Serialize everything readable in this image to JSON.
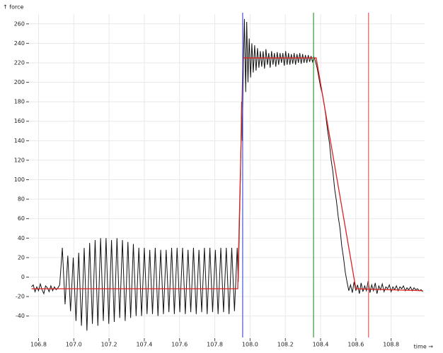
{
  "chart_data": {
    "type": "line",
    "y_label": "↑ force",
    "x_label": "time →",
    "xlim": [
      106.75,
      108.99
    ],
    "ylim": [
      -62,
      270
    ],
    "xticks": [
      106.8,
      {
        "value": 107,
        "label": "107.0"
      },
      107.2,
      107.4,
      107.6,
      107.8,
      {
        "value": 108,
        "label": "108.0"
      },
      108.2,
      108.4,
      108.6,
      108.8
    ],
    "yticks": [
      -40,
      -20,
      0,
      20,
      40,
      60,
      80,
      100,
      120,
      140,
      160,
      180,
      200,
      220,
      240,
      260
    ],
    "grid": true,
    "series": [
      {
        "color": "#111111",
        "x": [
          106.76,
          106.77,
          106.78,
          106.79,
          106.8,
          106.81,
          106.82,
          106.83,
          106.84,
          106.85,
          106.86,
          106.87,
          106.88,
          106.89,
          106.9,
          106.91,
          106.92,
          106.935,
          106.9505,
          106.966,
          106.9815,
          106.997,
          107.0125,
          107.028,
          107.0435,
          107.059,
          107.0745,
          107.09,
          107.1055,
          107.121,
          107.1365,
          107.152,
          107.1675,
          107.183,
          107.1985,
          107.214,
          107.2295,
          107.245,
          107.2605,
          107.276,
          107.2915,
          107.307,
          107.3225,
          107.338,
          107.3535,
          107.369,
          107.3845,
          107.4,
          107.4155,
          107.431,
          107.4465,
          107.462,
          107.4775,
          107.493,
          107.5085,
          107.524,
          107.5395,
          107.555,
          107.5705,
          107.586,
          107.6015,
          107.617,
          107.6325,
          107.648,
          107.6635,
          107.679,
          107.6945,
          107.71,
          107.7255,
          107.741,
          107.7565,
          107.772,
          107.7875,
          107.803,
          107.8185,
          107.834,
          107.8495,
          107.865,
          107.8805,
          107.896,
          107.9115,
          107.927,
          107.933,
          107.945,
          107.952,
          107.956,
          107.962,
          107.968,
          107.975,
          107.981,
          107.988,
          107.995,
          108.003,
          108.01,
          108.018,
          108.026,
          108.034,
          108.042,
          108.05,
          108.058,
          108.066,
          108.074,
          108.082,
          108.09,
          108.098,
          108.106,
          108.114,
          108.122,
          108.13,
          108.138,
          108.146,
          108.154,
          108.162,
          108.17,
          108.178,
          108.186,
          108.194,
          108.202,
          108.21,
          108.218,
          108.226,
          108.234,
          108.242,
          108.25,
          108.258,
          108.266,
          108.274,
          108.282,
          108.29,
          108.298,
          108.306,
          108.314,
          108.322,
          108.33,
          108.338,
          108.346,
          108.354,
          108.362,
          108.37,
          108.38,
          108.39,
          108.4,
          108.41,
          108.42,
          108.43,
          108.44,
          108.45,
          108.46,
          108.47,
          108.48,
          108.49,
          108.5,
          108.51,
          108.52,
          108.53,
          108.54,
          108.55,
          108.56,
          108.57,
          108.58,
          108.59,
          108.6,
          108.61,
          108.62,
          108.63,
          108.64,
          108.65,
          108.66,
          108.67,
          108.68,
          108.69,
          108.7,
          108.71,
          108.72,
          108.73,
          108.74,
          108.75,
          108.76,
          108.77,
          108.78,
          108.79,
          108.8,
          108.81,
          108.82,
          108.83,
          108.84,
          108.85,
          108.86,
          108.87,
          108.88,
          108.89,
          108.9,
          108.91,
          108.92,
          108.93,
          108.94,
          108.95,
          108.96,
          108.97,
          108.98
        ],
        "values": [
          -10,
          -8,
          -15,
          -10,
          -14,
          -7,
          -13,
          -17,
          -9,
          -11,
          -15,
          -9,
          -14,
          -10,
          -13,
          -11,
          -8,
          30,
          -28,
          22,
          -35,
          20,
          -45,
          25,
          -50,
          30,
          -55,
          35,
          -48,
          38,
          -50,
          40,
          -45,
          40,
          -48,
          38,
          -46,
          40,
          -42,
          38,
          -45,
          36,
          -42,
          34,
          -40,
          30,
          -40,
          30,
          -38,
          28,
          -38,
          30,
          -40,
          28,
          -38,
          28,
          -36,
          30,
          -38,
          30,
          -36,
          30,
          -38,
          28,
          -36,
          30,
          -38,
          28,
          -36,
          30,
          -38,
          30,
          -36,
          28,
          -38,
          30,
          -36,
          30,
          -38,
          30,
          -35,
          30,
          -5,
          100,
          180,
          140,
          220,
          265,
          190,
          262,
          200,
          245,
          205,
          240,
          210,
          238,
          212,
          235,
          215,
          232,
          216,
          232,
          214,
          234,
          218,
          230,
          215,
          232,
          218,
          230,
          216,
          231,
          218,
          230,
          220,
          230,
          217,
          232,
          218,
          230,
          218,
          229,
          219,
          230,
          218,
          229,
          220,
          230,
          219,
          229,
          220,
          228,
          220,
          228,
          221,
          227,
          221,
          226,
          222,
          215,
          205,
          195,
          188,
          178,
          165,
          150,
          138,
          120,
          108,
          90,
          78,
          62,
          50,
          32,
          20,
          5,
          -5,
          -14,
          -8,
          -16,
          -5,
          -14,
          -8,
          -17,
          -6,
          -15,
          -9,
          -14,
          -4,
          -16,
          -8,
          -14,
          -6,
          -17,
          -9,
          -13,
          -7,
          -15,
          -10,
          -12,
          -8,
          -15,
          -10,
          -13,
          -9,
          -14,
          -10,
          -12,
          -9,
          -14,
          -11,
          -13,
          -10,
          -14,
          -11,
          -13,
          -12,
          -14,
          -13,
          -15
        ]
      },
      {
        "color": "#dd2222",
        "x": [
          106.76,
          107.93,
          107.96,
          108.375,
          108.6,
          108.98
        ],
        "values": [
          -12,
          -12,
          225,
          225,
          -12,
          -14
        ]
      }
    ],
    "vlines": [
      {
        "x": 107.958,
        "color": "#4455dd"
      },
      {
        "x": 108.36,
        "color": "#339933"
      },
      {
        "x": 108.672,
        "color": "#ee5555"
      }
    ]
  }
}
